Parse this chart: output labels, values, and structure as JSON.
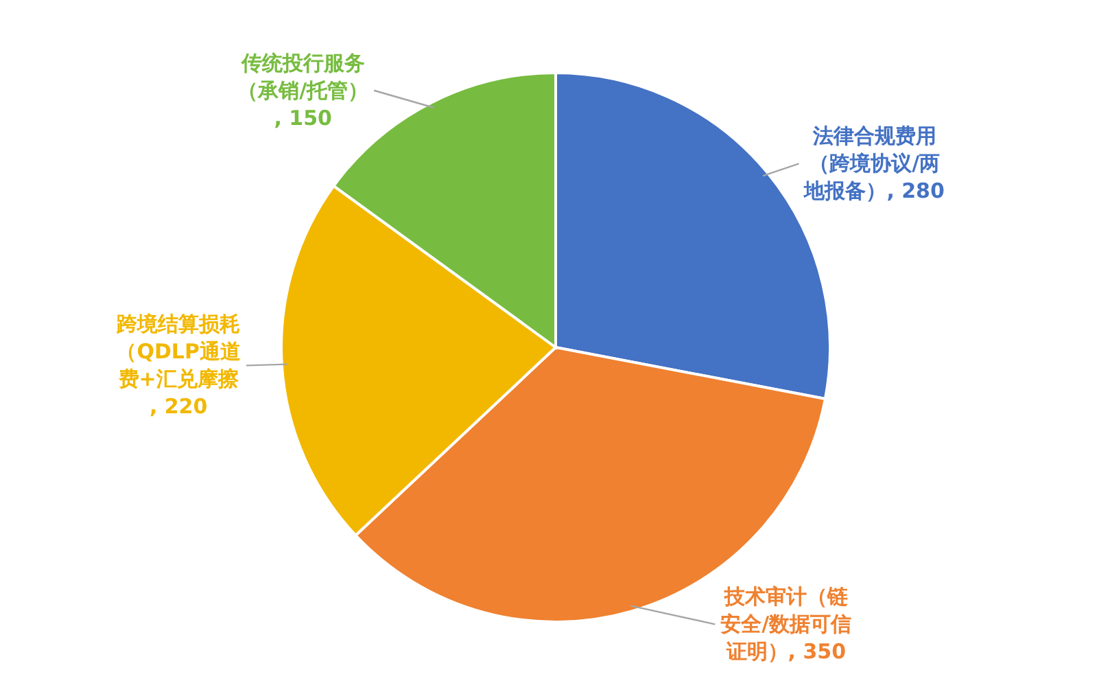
{
  "chart_data": {
    "type": "pie",
    "categories": [
      "法律合规费用（跨境协议/两地报备）",
      "技术审计（链安全/数据可信证明）",
      "跨境结算损耗（QDLP通道费+汇兑摩擦",
      "传统投行服务（承销/托管）"
    ],
    "values": [
      280,
      350,
      220,
      150
    ],
    "colors": [
      "#4472c4",
      "#ef8130",
      "#f2b800",
      "#77bc40"
    ],
    "value_labels": [
      ", 280",
      ", 350",
      ", 220",
      ", 150"
    ]
  }
}
